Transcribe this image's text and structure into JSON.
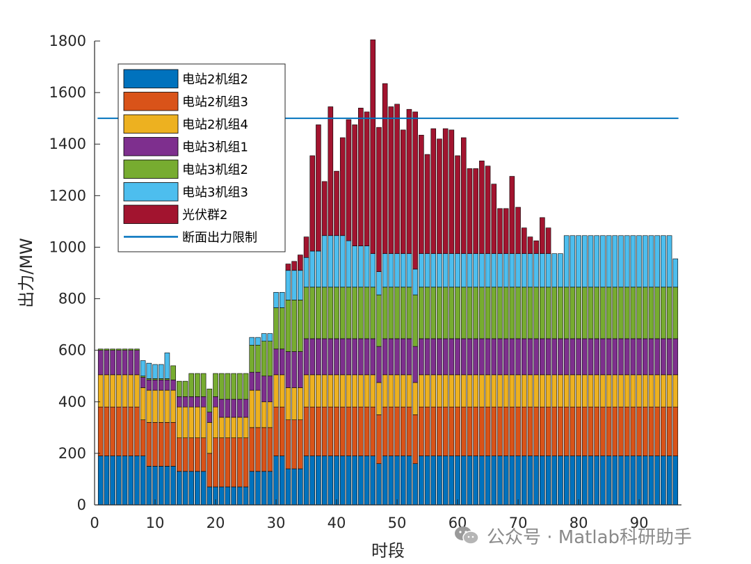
{
  "chart_data": {
    "type": "bar",
    "stacked": true,
    "xlabel": "时段",
    "ylabel": "出力/MW",
    "xlim": [
      0,
      97
    ],
    "ylim": [
      0,
      1800
    ],
    "xticks": [
      0,
      10,
      20,
      30,
      40,
      50,
      60,
      70,
      80,
      90
    ],
    "yticks": [
      0,
      200,
      400,
      600,
      800,
      1000,
      1200,
      1400,
      1600,
      1800
    ],
    "legend_position": "top-left",
    "reference_line": {
      "name": "断面出力限制",
      "value": 1500,
      "x_range": [
        1,
        96
      ],
      "color": "#0072BD"
    },
    "series": [
      {
        "name": "电站2机组2",
        "color": "#0072BD",
        "values": [
          190,
          190,
          190,
          190,
          190,
          190,
          190,
          190,
          150,
          150,
          150,
          150,
          150,
          130,
          130,
          130,
          130,
          130,
          70,
          70,
          70,
          70,
          70,
          70,
          70,
          130,
          130,
          130,
          130,
          190,
          190,
          140,
          140,
          140,
          190,
          190,
          190,
          190,
          190,
          190,
          190,
          190,
          190,
          190,
          190,
          190,
          160,
          190,
          190,
          190,
          190,
          190,
          160,
          190,
          190,
          190,
          190,
          190,
          190,
          190,
          190,
          190,
          190,
          190,
          190,
          190,
          190,
          190,
          190,
          190,
          190,
          190,
          190,
          190,
          190,
          190,
          190,
          190,
          190,
          190,
          190,
          190,
          190,
          190,
          190,
          190,
          190,
          190,
          190,
          190,
          190,
          190,
          190,
          190,
          190,
          190
        ]
      },
      {
        "name": "电站2机组3",
        "color": "#D95319",
        "values": [
          190,
          190,
          190,
          190,
          190,
          190,
          190,
          140,
          170,
          170,
          170,
          170,
          170,
          130,
          130,
          130,
          130,
          130,
          130,
          190,
          190,
          190,
          190,
          190,
          190,
          170,
          170,
          170,
          170,
          190,
          190,
          190,
          190,
          190,
          190,
          190,
          190,
          190,
          190,
          190,
          190,
          190,
          190,
          190,
          190,
          190,
          190,
          190,
          190,
          190,
          190,
          190,
          190,
          190,
          190,
          190,
          190,
          190,
          190,
          190,
          190,
          190,
          190,
          190,
          190,
          190,
          190,
          190,
          190,
          190,
          190,
          190,
          190,
          190,
          190,
          190,
          190,
          190,
          190,
          190,
          190,
          190,
          190,
          190,
          190,
          190,
          190,
          190,
          190,
          190,
          190,
          190,
          190,
          190,
          190,
          190
        ]
      },
      {
        "name": "电站2机组4",
        "color": "#EDB120",
        "values": [
          125,
          125,
          125,
          125,
          125,
          125,
          125,
          125,
          125,
          125,
          125,
          125,
          125,
          120,
          120,
          120,
          120,
          120,
          120,
          120,
          80,
          80,
          80,
          80,
          80,
          145,
          145,
          100,
          100,
          125,
          125,
          125,
          125,
          125,
          125,
          125,
          125,
          125,
          125,
          125,
          125,
          125,
          125,
          125,
          125,
          125,
          125,
          125,
          125,
          125,
          125,
          125,
          125,
          125,
          125,
          125,
          125,
          125,
          125,
          125,
          125,
          125,
          125,
          125,
          125,
          125,
          125,
          125,
          125,
          125,
          125,
          125,
          125,
          125,
          125,
          125,
          125,
          125,
          125,
          125,
          125,
          125,
          125,
          125,
          125,
          125,
          125,
          125,
          125,
          125,
          125,
          125,
          125,
          125,
          125,
          125
        ]
      },
      {
        "name": "电站3机组1",
        "color": "#7E2F8E",
        "values": [
          95,
          95,
          95,
          95,
          95,
          95,
          95,
          40,
          40,
          40,
          40,
          40,
          40,
          40,
          40,
          40,
          40,
          40,
          40,
          40,
          70,
          70,
          70,
          70,
          70,
          70,
          70,
          100,
          100,
          100,
          100,
          140,
          140,
          140,
          140,
          140,
          140,
          140,
          140,
          140,
          140,
          140,
          140,
          140,
          140,
          140,
          140,
          140,
          140,
          140,
          140,
          140,
          140,
          140,
          140,
          140,
          140,
          140,
          140,
          140,
          140,
          140,
          140,
          140,
          140,
          140,
          140,
          140,
          140,
          140,
          140,
          140,
          140,
          140,
          140,
          140,
          140,
          140,
          140,
          140,
          140,
          140,
          140,
          140,
          140,
          140,
          140,
          140,
          140,
          140,
          140,
          140,
          140,
          140,
          140,
          140
        ]
      },
      {
        "name": "电站3机组2",
        "color": "#77AC30",
        "values": [
          5,
          5,
          5,
          5,
          5,
          5,
          5,
          5,
          5,
          5,
          5,
          5,
          55,
          60,
          60,
          90,
          90,
          90,
          90,
          90,
          100,
          100,
          100,
          100,
          100,
          105,
          105,
          135,
          135,
          160,
          160,
          200,
          200,
          200,
          200,
          200,
          200,
          200,
          200,
          200,
          200,
          200,
          200,
          200,
          200,
          200,
          200,
          200,
          200,
          200,
          200,
          200,
          200,
          200,
          200,
          200,
          200,
          200,
          200,
          200,
          200,
          200,
          200,
          200,
          200,
          200,
          200,
          200,
          200,
          200,
          200,
          200,
          200,
          200,
          200,
          200,
          200,
          200,
          200,
          200,
          200,
          200,
          200,
          200,
          200,
          200,
          200,
          200,
          200,
          200,
          200,
          200,
          200,
          200,
          200,
          200
        ]
      },
      {
        "name": "电站3机组3",
        "color": "#4DBEEE",
        "values": [
          0,
          0,
          0,
          0,
          0,
          0,
          0,
          60,
          60,
          55,
          55,
          100,
          0,
          0,
          0,
          0,
          0,
          0,
          0,
          0,
          0,
          0,
          0,
          0,
          0,
          30,
          30,
          30,
          30,
          60,
          60,
          115,
          115,
          115,
          115,
          140,
          140,
          200,
          200,
          200,
          200,
          180,
          160,
          160,
          160,
          130,
          90,
          130,
          130,
          130,
          130,
          130,
          100,
          130,
          130,
          130,
          130,
          130,
          130,
          130,
          130,
          130,
          130,
          130,
          130,
          130,
          130,
          130,
          130,
          130,
          130,
          130,
          130,
          130,
          130,
          130,
          130,
          200,
          200,
          200,
          200,
          200,
          200,
          200,
          200,
          200,
          200,
          200,
          200,
          200,
          200,
          200,
          200,
          200,
          200,
          110
        ]
      },
      {
        "name": "光伏群2",
        "color": "#A2142F",
        "values": [
          0,
          0,
          0,
          0,
          0,
          0,
          0,
          0,
          0,
          0,
          0,
          0,
          0,
          0,
          0,
          0,
          0,
          0,
          0,
          0,
          0,
          0,
          0,
          0,
          0,
          0,
          0,
          0,
          0,
          0,
          0,
          25,
          35,
          60,
          80,
          370,
          490,
          210,
          500,
          250,
          380,
          470,
          470,
          535,
          520,
          830,
          560,
          660,
          570,
          580,
          480,
          560,
          610,
          460,
          385,
          485,
          445,
          485,
          480,
          380,
          450,
          330,
          330,
          360,
          340,
          270,
          175,
          175,
          300,
          180,
          100,
          65,
          50,
          140,
          100,
          0,
          0,
          0,
          0,
          0,
          0,
          0,
          0,
          0,
          0,
          0,
          0,
          0,
          0,
          0,
          0,
          0,
          0,
          0,
          0,
          0
        ]
      }
    ]
  },
  "watermark": {
    "text": "公众号 · Matlab科研助手",
    "icon": "wechat-icon"
  }
}
